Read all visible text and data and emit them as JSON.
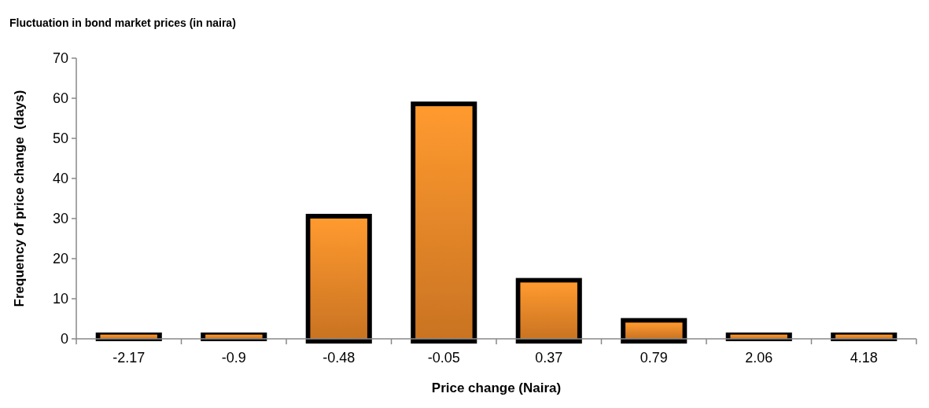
{
  "chart_data": {
    "type": "bar",
    "title": "Fluctuation in bond market prices (in naira)",
    "xlabel": "Price change (Naira)",
    "ylabel": "Frequency of price change  (days)",
    "categories": [
      "-2.17",
      "-0.9",
      "-0.48",
      "-0.05",
      "0.37",
      "0.79",
      "2.06",
      "4.18"
    ],
    "values": [
      1,
      1,
      30,
      58,
      14,
      4,
      1,
      1
    ],
    "color": "#f08a2a",
    "ylim": [
      0,
      70
    ],
    "yticks": [
      0,
      10,
      20,
      30,
      40,
      50,
      60,
      70
    ],
    "grid": false
  }
}
